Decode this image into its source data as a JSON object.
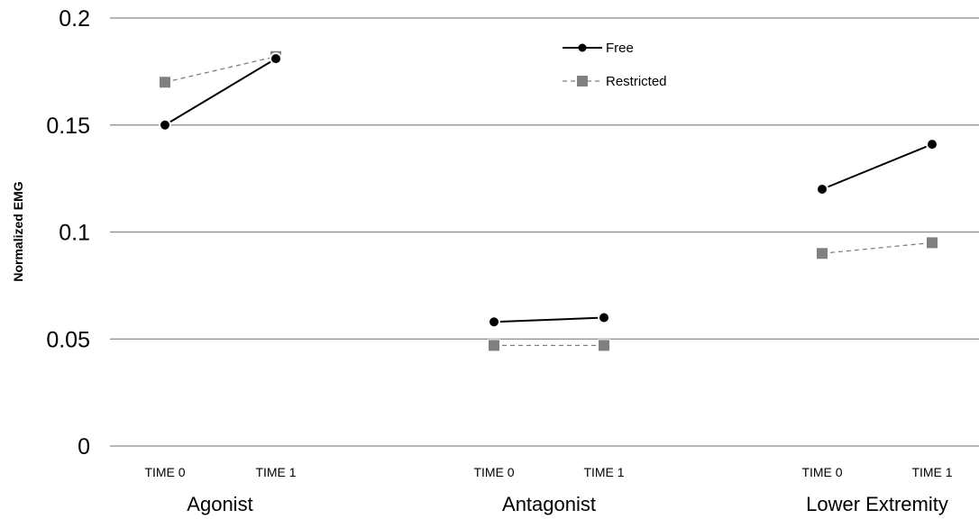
{
  "chart_data": {
    "type": "line",
    "title": "",
    "ylabel": "Normalized EMG",
    "xlabel": "",
    "ylim": [
      0,
      0.2
    ],
    "yticks": [
      0,
      0.05,
      0.1,
      0.15,
      0.2
    ],
    "ytick_labels": [
      "0",
      "0.05",
      "0.1",
      "0.15",
      "0.2"
    ],
    "grid": true,
    "legend": {
      "placement": "top-center",
      "entries": [
        "Free",
        "Restricted"
      ]
    },
    "groups": [
      {
        "label": "Agonist",
        "categories": [
          "TIME 0",
          "TIME 1"
        ]
      },
      {
        "label": "Antagonist",
        "categories": [
          "TIME 0",
          "TIME 1"
        ]
      },
      {
        "label": "Lower Extremity",
        "categories": [
          "TIME 0",
          "TIME 1"
        ]
      }
    ],
    "series": [
      {
        "name": "Free",
        "color": "#000000",
        "line_style": "solid",
        "marker": "circle",
        "values": [
          [
            0.15,
            0.181
          ],
          [
            0.058,
            0.06
          ],
          [
            0.12,
            0.141
          ]
        ]
      },
      {
        "name": "Restricted",
        "color": "#808080",
        "line_style": "dashed",
        "marker": "square",
        "values": [
          [
            0.17,
            0.182
          ],
          [
            0.047,
            0.047
          ],
          [
            0.09,
            0.095
          ]
        ]
      }
    ]
  }
}
